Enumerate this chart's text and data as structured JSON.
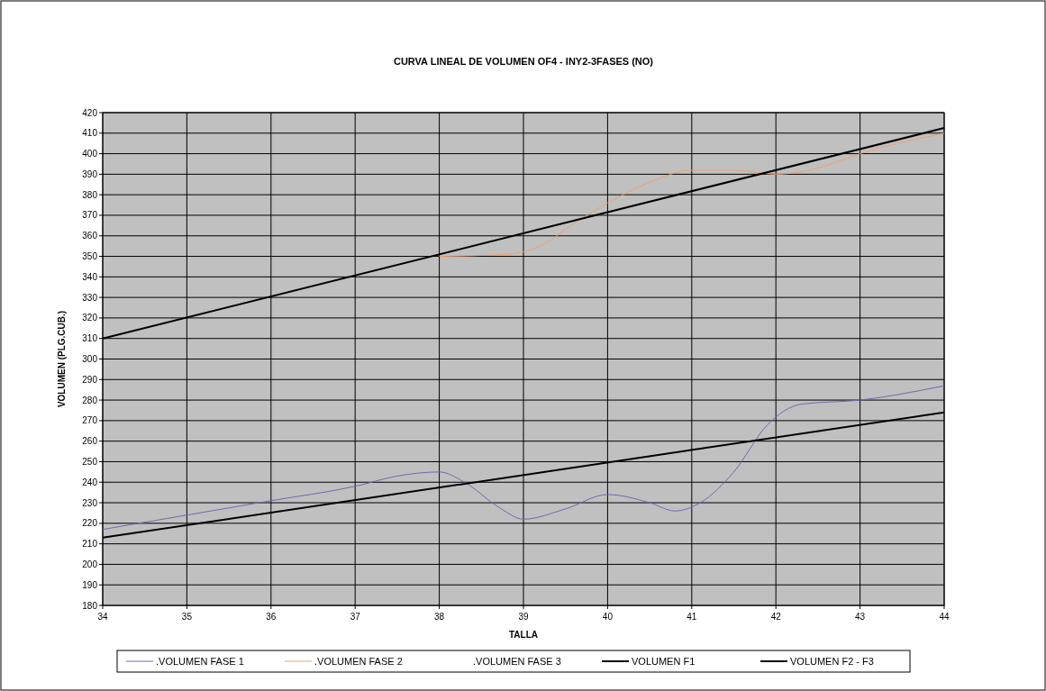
{
  "chart_data": {
    "type": "line",
    "title": "CURVA LINEAL DE VOLUMEN OF4 - INY2-3FASES (NO)",
    "xlabel": "TALLA",
    "ylabel": "VOLUMEN (PLG.CUB.)",
    "xlim": [
      34,
      44
    ],
    "xticks": [
      34,
      35,
      36,
      37,
      38,
      39,
      40,
      41,
      42,
      43,
      44
    ],
    "ylim": [
      180,
      420
    ],
    "yticks": [
      180,
      190,
      200,
      210,
      220,
      230,
      240,
      250,
      260,
      270,
      280,
      290,
      300,
      310,
      320,
      330,
      340,
      350,
      360,
      370,
      380,
      390,
      400,
      410,
      420
    ],
    "grid": true,
    "legend": "bottom",
    "marker": "none",
    "line_style": "solid",
    "series": [
      {
        "name": ".VOLUMEN FASE 1",
        "color": "#6b6bb0",
        "x": [
          34,
          35,
          36,
          37,
          37.5,
          38,
          38.3,
          38.7,
          39,
          39.5,
          40,
          40.5,
          40.8,
          41.1,
          41.5,
          41.9,
          42.3,
          43,
          44
        ],
        "values": [
          217,
          224,
          231,
          238,
          243,
          245,
          240,
          228,
          222,
          227,
          234,
          230,
          226,
          230,
          245,
          268,
          278,
          280,
          287
        ]
      },
      {
        "name": ".VOLUMEN FASE 2",
        "color": "#f0a070",
        "x": [
          38,
          38.8,
          39.2,
          39.6,
          40,
          40.5,
          41,
          41.5,
          42,
          42.5,
          43,
          44
        ],
        "values": [
          350,
          351,
          355,
          366,
          376,
          386,
          392,
          392,
          390,
          393,
          400,
          410
        ]
      },
      {
        "name": ".VOLUMEN FASE 3"
      },
      {
        "name": "VOLUMEN F1",
        "color": "#000000",
        "x": [
          34,
          44
        ],
        "values": [
          213,
          274
        ]
      },
      {
        "name": "VOLUMEN F2 - F3",
        "color": "#000000",
        "x": [
          34,
          44
        ],
        "values": [
          310,
          412.5
        ]
      }
    ]
  }
}
